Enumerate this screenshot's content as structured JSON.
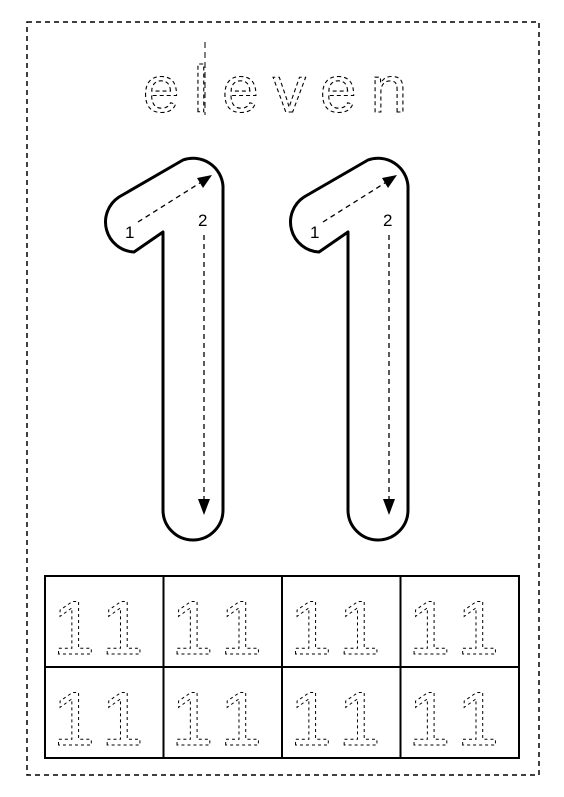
{
  "worksheet": {
    "word": "eleven",
    "numeral": "11",
    "stroke_labels": {
      "first": "1",
      "second": "2"
    },
    "practice_rows": 2,
    "practice_cols": 4,
    "stroke_color": "#000000",
    "background_color": "#ffffff"
  }
}
